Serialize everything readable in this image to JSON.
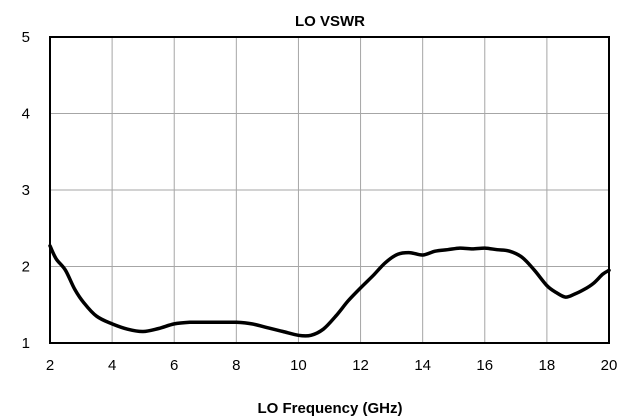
{
  "chart_data": {
    "type": "line",
    "title": "LO VSWR",
    "xlabel": "LO Frequency (GHz)",
    "ylabel": "",
    "xlim": [
      2,
      20
    ],
    "ylim": [
      1,
      5
    ],
    "xticks": [
      2,
      4,
      6,
      8,
      10,
      12,
      14,
      16,
      18,
      20
    ],
    "yticks": [
      1,
      2,
      3,
      4,
      5
    ],
    "grid": true,
    "legend": "none",
    "series": [
      {
        "color": "#000000",
        "x": [
          2.0,
          2.2,
          2.5,
          2.8,
          3.1,
          3.5,
          4.0,
          4.5,
          5.0,
          5.5,
          6.0,
          6.5,
          7.0,
          7.5,
          8.0,
          8.5,
          9.0,
          9.5,
          10.0,
          10.4,
          10.8,
          11.2,
          11.6,
          12.0,
          12.4,
          12.8,
          13.2,
          13.6,
          14.0,
          14.4,
          14.8,
          15.2,
          15.6,
          16.0,
          16.4,
          16.8,
          17.2,
          17.6,
          18.0,
          18.3,
          18.6,
          18.9,
          19.2,
          19.5,
          19.8,
          20.0
        ],
        "y": [
          2.27,
          2.1,
          1.95,
          1.7,
          1.52,
          1.35,
          1.25,
          1.18,
          1.15,
          1.19,
          1.25,
          1.27,
          1.27,
          1.27,
          1.27,
          1.25,
          1.2,
          1.15,
          1.1,
          1.1,
          1.18,
          1.35,
          1.55,
          1.72,
          1.88,
          2.05,
          2.16,
          2.18,
          2.15,
          2.2,
          2.22,
          2.24,
          2.23,
          2.24,
          2.22,
          2.2,
          2.12,
          1.95,
          1.75,
          1.66,
          1.6,
          1.64,
          1.7,
          1.78,
          1.9,
          1.95
        ]
      }
    ]
  }
}
